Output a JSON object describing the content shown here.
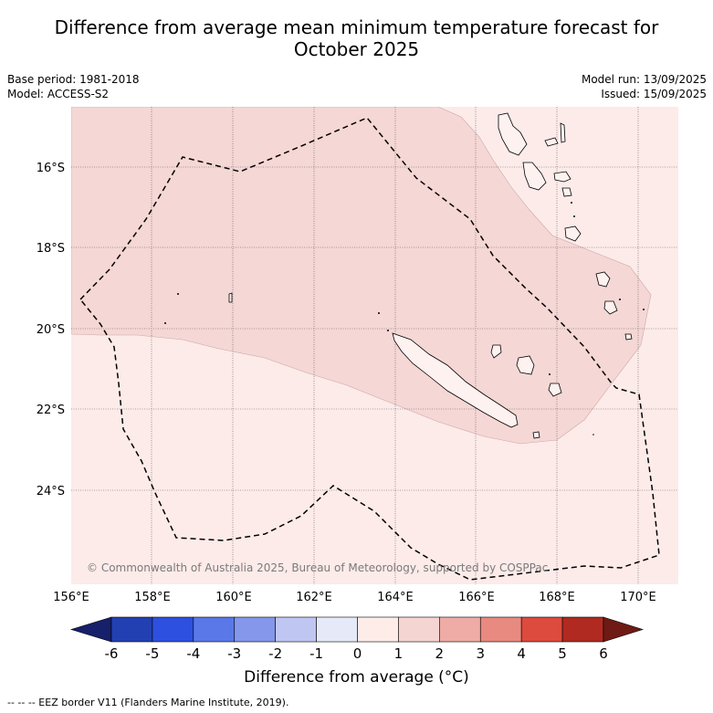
{
  "title_line1": "Difference from average mean minimum temperature forecast for",
  "title_line2": "October 2025",
  "base_period": "Base period: 1981-2018",
  "model": "Model: ACCESS-S2",
  "model_run": "Model run: 13/09/2025",
  "issued": "Issued: 15/09/2025",
  "lat_labels": [
    "16°S",
    "18°S",
    "20°S",
    "22°S",
    "24°S"
  ],
  "lon_labels": [
    "156°E",
    "158°E",
    "160°E",
    "162°E",
    "164°E",
    "166°E",
    "168°E",
    "170°E"
  ],
  "copyright": "© Commonwealth of Australia 2025, Bureau of Meteorology, supported by COSPPac",
  "colorbar": {
    "ticks": [
      "-6",
      "-5",
      "-4",
      "-3",
      "-2",
      "-1",
      "0",
      "1",
      "2",
      "3",
      "4",
      "5",
      "6"
    ],
    "colors": [
      "#16206b",
      "#2340b3",
      "#2d50e0",
      "#5a78e8",
      "#8597ea",
      "#bfc6f2",
      "#e6e9f8",
      "#fdece8",
      "#f5d5d2",
      "#efaca6",
      "#e88a7f",
      "#dc4b3e",
      "#b02a22",
      "#6f1a14"
    ],
    "title": "Difference from average (°C)"
  },
  "fill_colors": {
    "anomaly_0_1": "#fcebe9",
    "anomaly_1_2": "#f5d7d5"
  },
  "legend_note": "-- -- -- EEZ border V11 (Flanders Marine Institute, 2019)."
}
